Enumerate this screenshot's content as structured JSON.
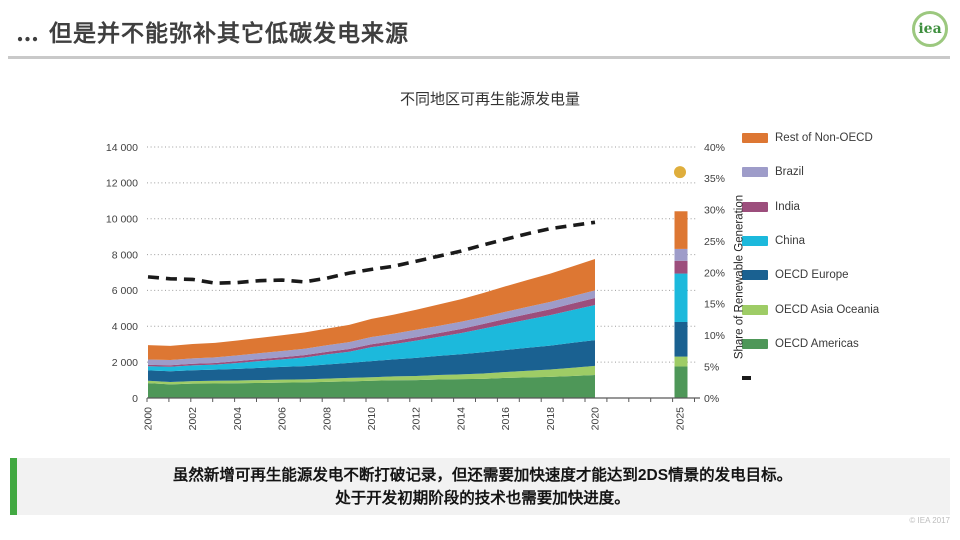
{
  "slide": {
    "title": "… 但是并不能弥补其它低碳发电来源",
    "logo_text": "iea",
    "footer": "© IEA 2017",
    "message_line1": "虽然新增可再生能源发电不断打破记录，但还需要加快速度才能达到2DS情景的发电目标。",
    "message_line2": "处于开发初期阶段的技术也需要加快进度。",
    "accent_green": "#42a942"
  },
  "chart_data": {
    "type": "area",
    "title": "不同地区可再生能源发电量",
    "years": [
      2000,
      2001,
      2002,
      2003,
      2004,
      2005,
      2006,
      2007,
      2008,
      2009,
      2010,
      2011,
      2012,
      2013,
      2014,
      2015,
      2016,
      2017,
      2018,
      2019,
      2020
    ],
    "bar_year": 2025,
    "series": [
      {
        "name": "OECD Americas",
        "color": "#4e9758",
        "values": [
          830,
          760,
          800,
          810,
          820,
          840,
          860,
          870,
          900,
          930,
          960,
          990,
          1000,
          1030,
          1050,
          1070,
          1120,
          1150,
          1180,
          1230,
          1280
        ],
        "bar_value": 1760
      },
      {
        "name": "OECD Asia Oceania",
        "color": "#9ecc66",
        "values": [
          130,
          135,
          140,
          150,
          155,
          160,
          165,
          170,
          180,
          190,
          200,
          215,
          230,
          250,
          270,
          300,
          330,
          370,
          410,
          460,
          510
        ],
        "bar_value": 550
      },
      {
        "name": "OECD Europe",
        "color": "#1a6191",
        "values": [
          580,
          600,
          610,
          620,
          650,
          680,
          710,
          740,
          790,
          840,
          900,
          950,
          1010,
          1070,
          1120,
          1180,
          1230,
          1280,
          1330,
          1390,
          1440
        ],
        "bar_value": 1930
      },
      {
        "name": "China",
        "color": "#1cb9dc",
        "values": [
          230,
          250,
          270,
          280,
          330,
          380,
          420,
          480,
          560,
          620,
          780,
          850,
          960,
          1060,
          1180,
          1320,
          1450,
          1580,
          1700,
          1830,
          1960
        ],
        "bar_value": 2700
      },
      {
        "name": "India",
        "color": "#9c4e7c",
        "values": [
          80,
          85,
          90,
          95,
          100,
          110,
          120,
          130,
          140,
          150,
          160,
          175,
          190,
          210,
          230,
          255,
          280,
          305,
          330,
          360,
          390
        ],
        "bar_value": 715
      },
      {
        "name": "Brazil",
        "color": "#9e9cc9",
        "values": [
          300,
          290,
          300,
          310,
          320,
          335,
          345,
          360,
          370,
          390,
          400,
          410,
          415,
          405,
          400,
          395,
          400,
          405,
          410,
          415,
          420
        ],
        "bar_value": 660
      },
      {
        "name": "Rest of Non-OECD",
        "color": "#dd7733",
        "values": [
          800,
          790,
          800,
          810,
          830,
          850,
          880,
          900,
          930,
          960,
          1010,
          1060,
          1120,
          1190,
          1260,
          1340,
          1420,
          1500,
          1580,
          1660,
          1750
        ],
        "bar_value": 2100
      }
    ],
    "share_line": {
      "name": "Share of Renewable Generation",
      "color": "#1a1a1a",
      "values_percent": [
        19.3,
        19.0,
        18.9,
        18.3,
        18.4,
        18.7,
        18.8,
        18.5,
        19.1,
        19.9,
        20.5,
        21.0,
        21.8,
        22.6,
        23.4,
        24.4,
        25.3,
        26.2,
        27.0,
        27.5,
        28.0
      ]
    },
    "target_dot": {
      "year": 2025,
      "share_percent": 36,
      "color": "#dfae3c"
    },
    "left_axis": {
      "max": 14000,
      "tick_values": [
        0,
        2000,
        4000,
        6000,
        8000,
        10000,
        12000,
        14000
      ],
      "tick_labels": [
        "0",
        "2 000",
        "4 000",
        "6 000",
        "8 000",
        "10 000",
        "12 000",
        "14 000"
      ]
    },
    "right_axis": {
      "max": 40,
      "title": "Share of  Renewable Generation",
      "tick_values": [
        0,
        5,
        10,
        15,
        20,
        25,
        30,
        35,
        40
      ],
      "tick_labels": [
        "0%",
        "5%",
        "10%",
        "15%",
        "20%",
        "25%",
        "30%",
        "35%",
        "40%"
      ]
    },
    "x_axis": {
      "year_labels": [
        "2000",
        "2002",
        "2004",
        "2006",
        "2008",
        "2010",
        "2012",
        "2014",
        "2016",
        "2018",
        "2020"
      ],
      "bar_label": "2025"
    },
    "legend": [
      {
        "label": "Rest of Non-OECD",
        "color": "#dd7733",
        "marker": "box"
      },
      {
        "label": "Brazil",
        "color": "#9e9cc9",
        "marker": "box"
      },
      {
        "label": "India",
        "color": "#9c4e7c",
        "marker": "box"
      },
      {
        "label": "China",
        "color": "#1cb9dc",
        "marker": "box"
      },
      {
        "label": "OECD Europe",
        "color": "#1a6191",
        "marker": "box"
      },
      {
        "label": "OECD Asia Oceania",
        "color": "#9ecc66",
        "marker": "box"
      },
      {
        "label": "OECD Americas",
        "color": "#4e9758",
        "marker": "box"
      },
      {
        "label": "",
        "color": "#1a1a1a",
        "marker": "dash"
      }
    ]
  }
}
